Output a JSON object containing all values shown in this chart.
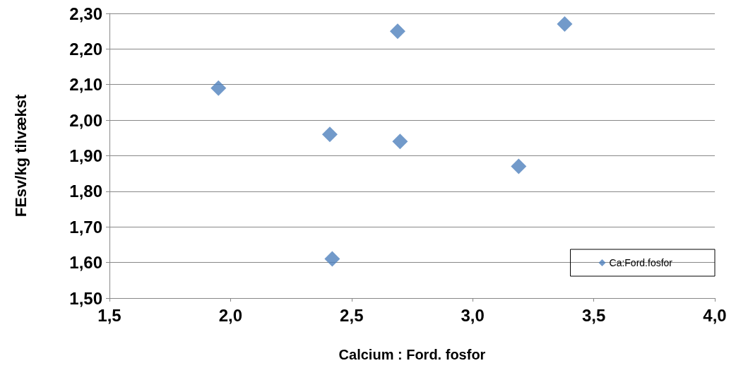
{
  "chart_data": {
    "type": "scatter",
    "xlabel": "Calcium : Ford. fosfor",
    "ylabel": "FEsv/kg tilvækst",
    "series": [
      {
        "name": "Ca:Ford.fosfor",
        "color": "#4f81bd",
        "x": [
          1.95,
          2.69,
          3.38,
          2.41,
          2.7,
          3.19,
          2.42
        ],
        "values": [
          2.09,
          2.25,
          2.27,
          1.96,
          1.94,
          1.87,
          1.61
        ]
      }
    ],
    "xlim": [
      1.5,
      4.0
    ],
    "xticks": [
      {
        "value": 1.5,
        "label": "1,5"
      },
      {
        "value": 2.0,
        "label": "2,0"
      },
      {
        "value": 2.5,
        "label": "2,5"
      },
      {
        "value": 3.0,
        "label": "3,0"
      },
      {
        "value": 3.5,
        "label": "3,5"
      },
      {
        "value": 4.0,
        "label": "4,0"
      }
    ],
    "ylim": [
      1.5,
      2.3
    ],
    "yticks": [
      {
        "value": 1.5,
        "label": "1,50"
      },
      {
        "value": 1.6,
        "label": "1,60"
      },
      {
        "value": 1.7,
        "label": "1,70"
      },
      {
        "value": 1.8,
        "label": "1,80"
      },
      {
        "value": 1.9,
        "label": "1,90"
      },
      {
        "value": 2.0,
        "label": "2,00"
      },
      {
        "value": 2.1,
        "label": "2,10"
      },
      {
        "value": 2.2,
        "label": "2,20"
      },
      {
        "value": 2.3,
        "label": "2,30"
      }
    ],
    "grid": "y",
    "legend": "bottom right",
    "marker": "diamond"
  }
}
